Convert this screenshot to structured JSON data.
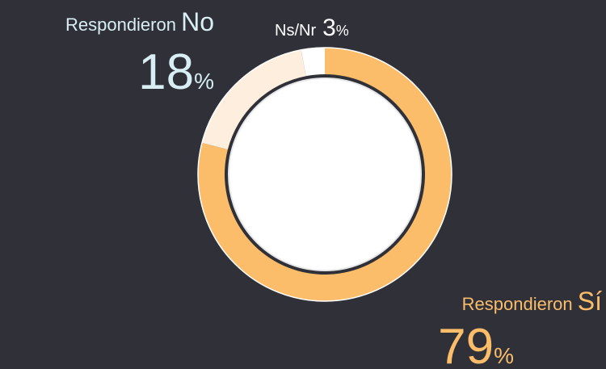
{
  "chart_data": {
    "type": "donut",
    "categories": [
      "Respondieron Sí",
      "Respondieron No",
      "Ns/Nr"
    ],
    "values": [
      79,
      18,
      3
    ],
    "value_labels": [
      "79%",
      "18%",
      "3%"
    ],
    "colors": [
      "#fbbd6a",
      "#fdeedd",
      "#ffffff"
    ],
    "label_colors": [
      "#fbbd6a",
      "#d8eef3",
      "#ffffff"
    ]
  }
}
